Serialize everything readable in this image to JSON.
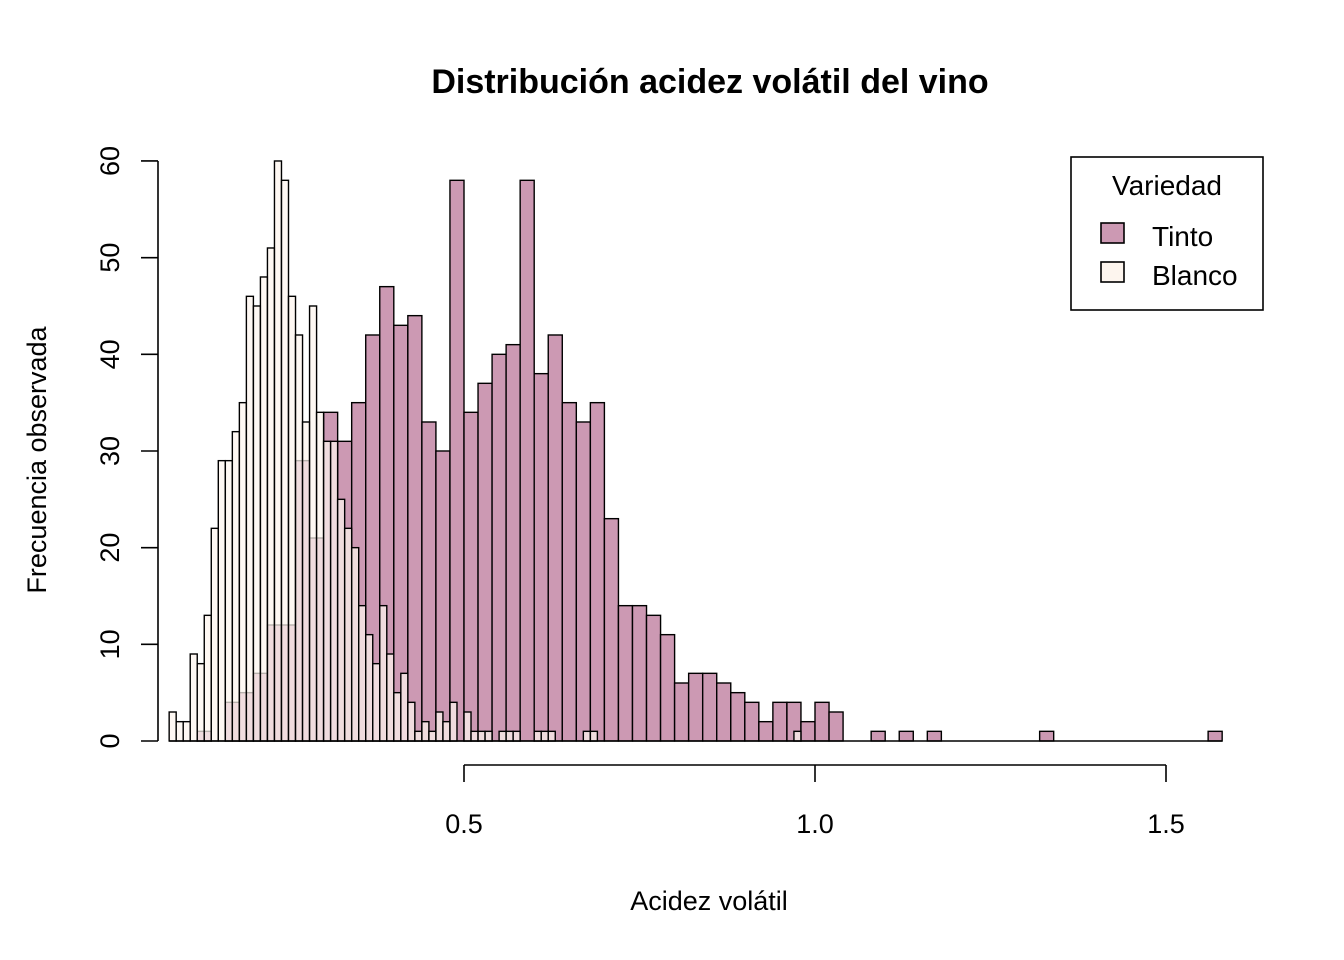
{
  "chart_data": {
    "type": "bar",
    "title": "Distribución acidez volátil del vino",
    "xlabel": "Acidez volátil",
    "ylabel": "Frecuencia observada",
    "xlim": [
      0.08,
      1.58
    ],
    "ylim": [
      0,
      60
    ],
    "xticks": [
      0.5,
      1.0,
      1.5
    ],
    "xtick_labels": [
      "0.5",
      "1.0",
      "1.5"
    ],
    "yticks": [
      0,
      10,
      20,
      30,
      40,
      50,
      60
    ],
    "ytick_labels": [
      "0",
      "10",
      "20",
      "30",
      "40",
      "50",
      "60"
    ],
    "grid": false,
    "legend": {
      "title": "Variedad",
      "position": "top-right",
      "entries": [
        {
          "label": "Tinto",
          "color": "#cc99b3"
        },
        {
          "label": "Blanco",
          "color": "#fdf5ee"
        }
      ]
    },
    "series": [
      {
        "name": "Tinto",
        "color": "#cc99b3",
        "bin_width": 0.02,
        "bins_start": [
          0.12,
          0.14,
          0.16,
          0.18,
          0.2,
          0.22,
          0.24,
          0.26,
          0.28,
          0.3,
          0.32,
          0.34,
          0.36,
          0.38,
          0.4,
          0.42,
          0.44,
          0.46,
          0.48,
          0.5,
          0.52,
          0.54,
          0.56,
          0.58,
          0.6,
          0.62,
          0.64,
          0.66,
          0.68,
          0.7,
          0.72,
          0.74,
          0.76,
          0.78,
          0.8,
          0.82,
          0.84,
          0.86,
          0.88,
          0.9,
          0.92,
          0.94,
          0.96,
          0.98,
          1.0,
          1.02,
          1.04,
          1.06,
          1.08,
          1.1,
          1.12,
          1.14,
          1.16,
          1.18,
          1.2,
          1.22,
          1.24,
          1.26,
          1.28,
          1.3,
          1.32,
          1.34,
          1.36,
          1.38,
          1.4,
          1.42,
          1.44,
          1.46,
          1.48,
          1.5,
          1.52,
          1.54,
          1.56
        ],
        "values": [
          1,
          0,
          4,
          5,
          7,
          12,
          12,
          29,
          21,
          34,
          31,
          35,
          42,
          47,
          43,
          44,
          33,
          30,
          58,
          34,
          37,
          40,
          41,
          58,
          38,
          42,
          35,
          33,
          35,
          23,
          14,
          14,
          13,
          11,
          6,
          7,
          7,
          6,
          5,
          4,
          2,
          4,
          4,
          2,
          4,
          3,
          0,
          0,
          1,
          0,
          1,
          0,
          1,
          0,
          0,
          0,
          0,
          0,
          0,
          0,
          1,
          0,
          0,
          0,
          0,
          0,
          0,
          0,
          0,
          0,
          0,
          0,
          1
        ]
      },
      {
        "name": "Blanco",
        "color": "#fdf5ee",
        "bin_width": 0.01,
        "bins_start": [
          0.08,
          0.09,
          0.1,
          0.11,
          0.12,
          0.13,
          0.14,
          0.15,
          0.16,
          0.17,
          0.18,
          0.19,
          0.2,
          0.21,
          0.22,
          0.23,
          0.24,
          0.25,
          0.26,
          0.27,
          0.28,
          0.29,
          0.3,
          0.31,
          0.32,
          0.33,
          0.34,
          0.35,
          0.36,
          0.37,
          0.38,
          0.39,
          0.4,
          0.41,
          0.42,
          0.43,
          0.44,
          0.45,
          0.46,
          0.47,
          0.48,
          0.49,
          0.5,
          0.51,
          0.52,
          0.53,
          0.54,
          0.55,
          0.56,
          0.57,
          0.58,
          0.59,
          0.6,
          0.61,
          0.62,
          0.63,
          0.64,
          0.65,
          0.66,
          0.67,
          0.68,
          0.69,
          0.7,
          0.71,
          0.72,
          0.73,
          0.74,
          0.75,
          0.76,
          0.77,
          0.78,
          0.79,
          0.8,
          0.81,
          0.82,
          0.83,
          0.84,
          0.85,
          0.86,
          0.87,
          0.88,
          0.89,
          0.9,
          0.91,
          0.92,
          0.93,
          0.94,
          0.95,
          0.96,
          0.97,
          0.98,
          0.99
        ],
        "values": [
          3,
          2,
          2,
          9,
          8,
          13,
          22,
          29,
          29,
          32,
          35,
          46,
          45,
          48,
          51,
          60,
          58,
          46,
          42,
          33,
          45,
          34,
          31,
          31,
          25,
          22,
          20,
          14,
          11,
          8,
          14,
          9,
          5,
          7,
          4,
          1,
          2,
          1,
          3,
          2,
          4,
          0,
          3,
          1,
          1,
          1,
          0,
          1,
          1,
          1,
          0,
          0,
          1,
          1,
          1,
          0,
          0,
          0,
          0,
          1,
          1,
          0,
          0,
          0,
          0,
          0,
          0,
          0,
          0,
          0,
          0,
          0,
          0,
          0,
          0,
          0,
          0,
          0,
          0,
          0,
          0,
          0,
          0,
          0,
          0,
          0,
          0,
          0,
          0,
          1,
          0,
          0
        ]
      }
    ]
  }
}
